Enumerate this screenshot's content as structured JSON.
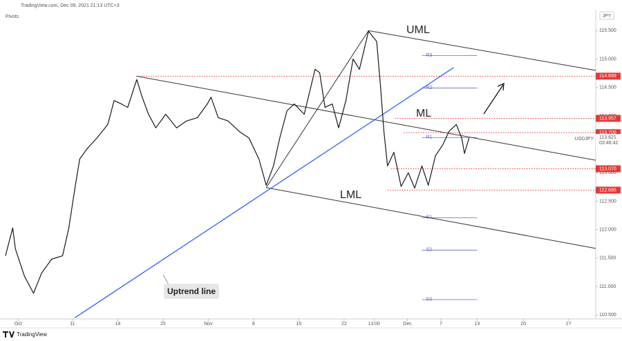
{
  "header": {
    "source": "TradingView.com, Dec 09, 2021 21:13 UTC+3",
    "indicator": "Pivots",
    "currency": "JPY"
  },
  "footer": {
    "brand": "TradingView"
  },
  "chart_data": {
    "type": "line",
    "series": [
      {
        "name": "USDJPY",
        "color": "#131722",
        "x": [
          -1.4,
          -0.6,
          -0.3,
          0.7,
          1.7,
          2.6,
          3.7,
          4.9,
          5.6,
          6.3,
          6.8,
          7.6,
          8.7,
          9.9,
          10.6,
          11.4,
          12.1,
          13.1,
          13.7,
          14.4,
          15.2,
          16.3,
          17.5,
          18.6,
          19.8,
          20.9,
          21.3,
          22.1,
          23.2,
          24.4,
          25.5,
          26.6,
          27.4,
          28.2,
          28.9,
          29.7,
          30.5,
          31.6,
          32.8,
          33.3,
          33.9,
          34.7,
          35.4,
          36.2,
          37.0,
          37.7,
          38.7,
          39.6,
          40.0,
          40.4,
          40.8,
          41.5,
          42.3,
          43.1,
          43.8,
          44.6,
          45.3,
          46.1,
          46.9,
          47.6,
          48.4,
          49.0,
          49.3,
          49.8
        ],
        "values": [
          111.54,
          112.03,
          111.66,
          111.18,
          110.88,
          111.24,
          111.48,
          111.54,
          112.03,
          112.76,
          113.24,
          113.42,
          113.61,
          113.85,
          114.27,
          114.21,
          114.15,
          114.64,
          114.33,
          114.03,
          113.79,
          114.03,
          113.79,
          113.91,
          113.97,
          114.21,
          114.33,
          113.97,
          113.91,
          113.73,
          113.61,
          113.24,
          112.78,
          113.12,
          113.61,
          114.09,
          114.21,
          114.03,
          114.82,
          114.76,
          114.15,
          114.21,
          113.79,
          114.27,
          115.0,
          114.82,
          115.49,
          115.31,
          114.58,
          113.73,
          113.12,
          113.36,
          112.76,
          113.0,
          112.73,
          113.12,
          112.78,
          113.3,
          113.49,
          113.73,
          113.85,
          113.61,
          113.34,
          113.61
        ]
      }
    ],
    "last_price": 113.621,
    "countdown": "03:46:42",
    "xlim": [
      -1.7,
      63.8
    ],
    "ylim": [
      110.43,
      115.82
    ],
    "xticks": [
      {
        "value": 0,
        "label": "Oct"
      },
      {
        "value": 6,
        "label": "11"
      },
      {
        "value": 11,
        "label": "18"
      },
      {
        "value": 16,
        "label": "25"
      },
      {
        "value": 21,
        "label": "Nov"
      },
      {
        "value": 26,
        "label": "8"
      },
      {
        "value": 31,
        "label": "15"
      },
      {
        "value": 36,
        "label": "22"
      },
      {
        "value": 39.3,
        "label": "13:00"
      },
      {
        "value": 43,
        "label": "Dec"
      },
      {
        "value": 46.7,
        "label": "7"
      },
      {
        "value": 50.7,
        "label": "13"
      },
      {
        "value": 55.8,
        "label": "20"
      },
      {
        "value": 60.8,
        "label": "27"
      }
    ],
    "yticks": [
      {
        "value": 110.5,
        "label": "110.500"
      },
      {
        "value": 111,
        "label": "111.000"
      },
      {
        "value": 111.5,
        "label": "111.500"
      },
      {
        "value": 112,
        "label": "112.000"
      },
      {
        "value": 112.5,
        "label": "112.500"
      },
      {
        "value": 113,
        "label": "113.000"
      },
      {
        "value": 113.5,
        "label": "113.500"
      },
      {
        "value": 114,
        "label": "114.000"
      },
      {
        "value": 114.5,
        "label": "114.500"
      },
      {
        "value": 115,
        "label": "115.000"
      },
      {
        "value": 115.5,
        "label": "115.500"
      }
    ],
    "levels": [
      {
        "value": 114.699,
        "label": "114.699",
        "x_start": 13.05
      },
      {
        "value": 113.957,
        "label": "113.957",
        "x_start": 41.6
      },
      {
        "value": 113.705,
        "label": "113.705",
        "x_start": 42.6
      },
      {
        "value": 113.07,
        "label": "113.070",
        "x_start": 41.2
      },
      {
        "value": 112.695,
        "label": "112.695",
        "x_start": 40.8
      }
    ],
    "level_color": "#e53935",
    "pivots": [
      {
        "name": "R3",
        "value": 115.06
      },
      {
        "name": "R2",
        "value": 114.49
      },
      {
        "name": "R1",
        "value": 113.62
      },
      {
        "name": "S1",
        "value": 112.21
      },
      {
        "name": "S2",
        "value": 111.64
      },
      {
        "name": "S3",
        "value": 110.77
      }
    ],
    "pivot_range": [
      44.6,
      50.7
    ],
    "pivot_color": "#5c6bc0",
    "trendlines": [
      {
        "name": "UML",
        "color": "#333333",
        "x": [
          38.7,
          63.8
        ],
        "y": [
          115.5,
          114.8
        ]
      },
      {
        "name": "ML",
        "color": "#333333",
        "x": [
          13.05,
          63.8
        ],
        "y": [
          114.7,
          113.22
        ]
      },
      {
        "name": "LML",
        "color": "#333333",
        "x": [
          27.4,
          63.8
        ],
        "y": [
          112.74,
          111.67
        ]
      },
      {
        "name": "Uptrend line",
        "color": "#2962ff",
        "x": [
          6.26,
          48.1
        ],
        "y": [
          110.45,
          114.85
        ]
      },
      {
        "color": "#333333",
        "x": [
          27.4,
          38.7
        ],
        "y": [
          112.74,
          115.5
        ]
      }
    ],
    "grid": false
  }
}
